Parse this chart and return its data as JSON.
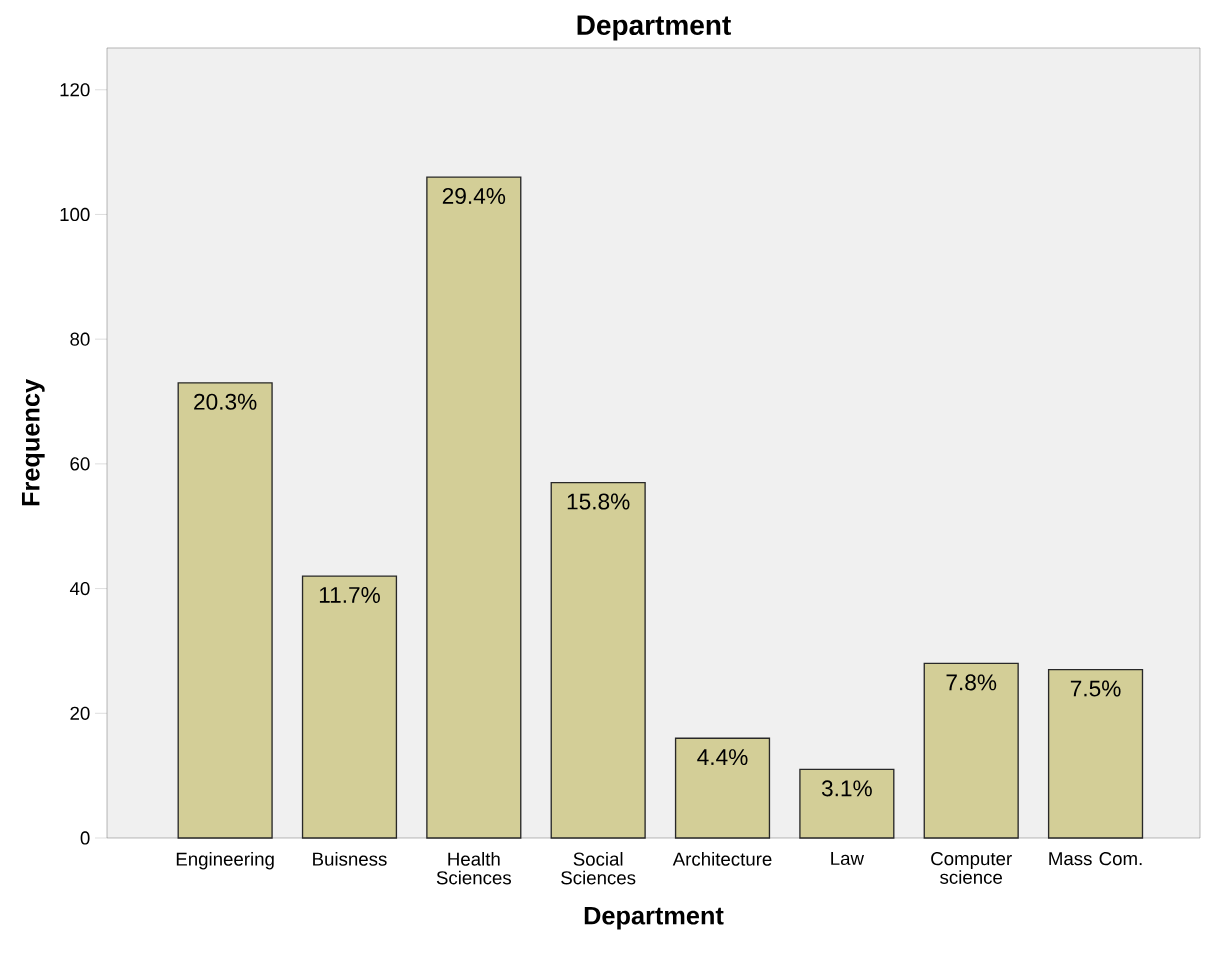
{
  "chart_data": {
    "type": "bar",
    "title": "Department",
    "xlabel": "Department",
    "ylabel": "Frequency",
    "categories": [
      "Engineering",
      "Buisness",
      "Health Sciences",
      "Social Sciences",
      "Architecture",
      "Law",
      "Computer science",
      "Mass Com."
    ],
    "values": [
      73,
      42,
      106,
      57,
      16,
      11,
      28,
      27
    ],
    "annotations": [
      {
        "text": "20.3%",
        "x": "Engineering",
        "y": 73
      },
      {
        "text": "11.7%",
        "x": "Buisness",
        "y": 42
      },
      {
        "text": "29.4%",
        "x": "Health Sciences",
        "y": 106
      },
      {
        "text": "15.8%",
        "x": "Social Sciences",
        "y": 57
      },
      {
        "text": "4.4%",
        "x": "Architecture",
        "y": 16
      },
      {
        "text": "3.1%",
        "x": "Law",
        "y": 11
      },
      {
        "text": "7.8%",
        "x": "Computer science",
        "y": 28
      },
      {
        "text": "7.5%",
        "x": "Mass Com.",
        "y": 27
      }
    ],
    "color": "#d3ce97",
    "ylim": [
      0,
      126.7
    ],
    "yticks": [
      0,
      20,
      40,
      60,
      80,
      100,
      120
    ],
    "grid": false
  }
}
